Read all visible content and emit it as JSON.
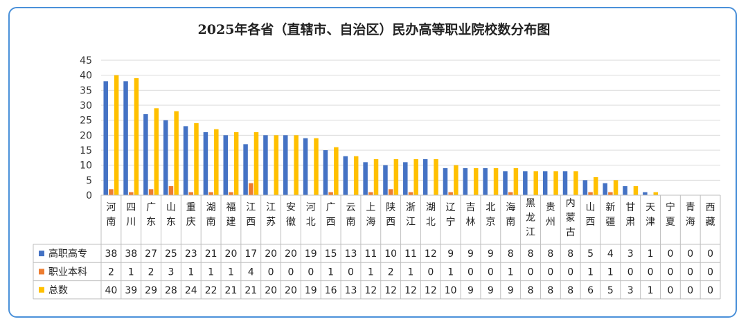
{
  "chart_data": {
    "type": "bar",
    "title": "2025年各省（直辖市、自治区）民办高等职业院校数分布图",
    "ylim": [
      0,
      45
    ],
    "yticks": [
      0,
      5,
      10,
      15,
      20,
      25,
      30,
      35,
      40,
      45
    ],
    "grid": true,
    "legend": "data-table-left",
    "categories": [
      "河南",
      "四川",
      "广东",
      "山东",
      "重庆",
      "湖南",
      "福建",
      "江西",
      "江苏",
      "安徽",
      "河北",
      "广西",
      "云南",
      "上海",
      "陕西",
      "浙江",
      "湖北",
      "辽宁",
      "吉林",
      "北京",
      "海南",
      "黑龙江",
      "贵州",
      "内蒙古",
      "山西",
      "新疆",
      "甘肃",
      "天津",
      "宁夏",
      "青海",
      "西藏"
    ],
    "series": [
      {
        "name": "高职高专",
        "color": "#4472c4",
        "values": [
          38,
          38,
          27,
          25,
          23,
          21,
          20,
          17,
          20,
          20,
          19,
          15,
          13,
          11,
          10,
          11,
          12,
          9,
          9,
          9,
          8,
          8,
          8,
          8,
          5,
          4,
          3,
          1,
          0,
          0,
          0
        ]
      },
      {
        "name": "职业本科",
        "color": "#ed7d31",
        "values": [
          2,
          1,
          2,
          3,
          1,
          1,
          1,
          4,
          0,
          0,
          0,
          1,
          0,
          1,
          2,
          1,
          0,
          1,
          0,
          0,
          1,
          0,
          0,
          0,
          1,
          1,
          0,
          0,
          0,
          0,
          0
        ]
      },
      {
        "name": "总数",
        "color": "#ffc000",
        "values": [
          40,
          39,
          29,
          28,
          24,
          22,
          21,
          21,
          20,
          20,
          19,
          16,
          13,
          12,
          12,
          12,
          12,
          10,
          9,
          9,
          9,
          8,
          8,
          8,
          6,
          5,
          3,
          1,
          0,
          0,
          0
        ]
      }
    ]
  }
}
